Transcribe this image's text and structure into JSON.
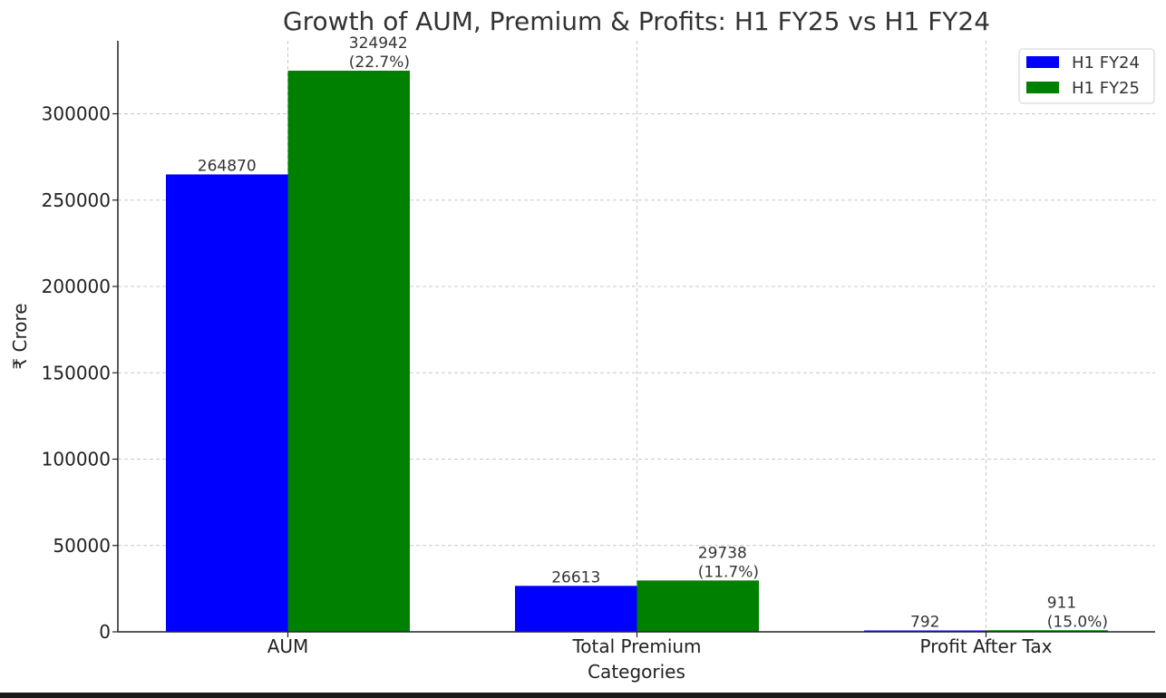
{
  "chart_data": {
    "type": "bar",
    "title": "Growth of AUM, Premium & Profits: H1 FY25 vs H1 FY24",
    "xlabel": "Categories",
    "ylabel": "₹ Crore",
    "categories": [
      "AUM",
      "Total Premium",
      "Profit After Tax"
    ],
    "series": [
      {
        "name": "H1 FY24",
        "color": "#0000ff",
        "values": [
          264870,
          26613,
          792
        ],
        "labels": [
          "264870",
          "26613",
          "792"
        ]
      },
      {
        "name": "H1 FY25",
        "color": "#008000",
        "values": [
          324942,
          29738,
          911
        ],
        "labels": [
          "324942\n(22.7%)",
          "29738\n(11.7%)",
          "911\n(15.0%)"
        ]
      }
    ],
    "ylim": [
      0,
      340000
    ],
    "yticks": [
      0,
      50000,
      100000,
      150000,
      200000,
      250000,
      300000
    ],
    "ytick_labels": [
      "0",
      "50000",
      "100000",
      "150000",
      "200000",
      "250000",
      "300000"
    ],
    "grid": true,
    "legend_position": "top-right"
  }
}
